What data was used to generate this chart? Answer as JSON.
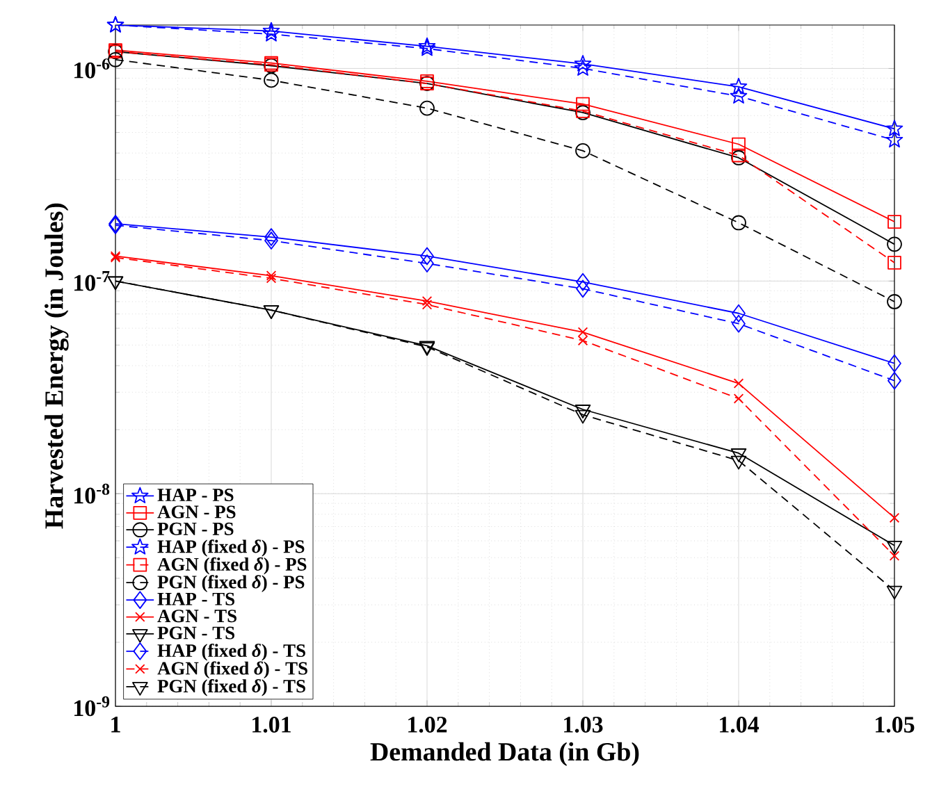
{
  "chart_data": {
    "type": "line",
    "xlabel": "Demanded Data (in Gb)",
    "ylabel": "Harvested Energy (in Joules)",
    "x": [
      1,
      1.01,
      1.02,
      1.03,
      1.04,
      1.05
    ],
    "log": "y",
    "grid": true,
    "legend": "bottom left",
    "xlim": [
      1,
      1.05
    ],
    "xticks": [
      1,
      1.01,
      1.02,
      1.03,
      1.04,
      1.05
    ],
    "ylim": [
      1e-09,
      1.6e-06
    ],
    "yticks": [
      {
        "value": 1e-09,
        "label": "10$^{-9}$"
      },
      {
        "value": 1e-08,
        "label": "10$^{-8}$"
      },
      {
        "value": 1e-07,
        "label": "10$^{-7}$"
      },
      {
        "value": 1e-06,
        "label": "10$^{-6}$"
      }
    ],
    "series": [
      {
        "name": "HAP - PS",
        "color": "#0000ff",
        "marker": "star",
        "line_style": "solid",
        "values": [
          1.6e-06,
          1.5e-06,
          1.27e-06,
          1.05e-06,
          8.2e-07,
          5.2e-07
        ]
      },
      {
        "name": "AGN - PS",
        "color": "#ff0000",
        "marker": "square",
        "line_style": "solid",
        "values": [
          1.22e-06,
          1.06e-06,
          8.7e-07,
          6.8e-07,
          4.4e-07,
          1.9e-07
        ]
      },
      {
        "name": "PGN - PS",
        "color": "#000000",
        "marker": "circle",
        "line_style": "solid",
        "values": [
          1.2e-06,
          1.03e-06,
          8.5e-07,
          6.2e-07,
          3.8e-07,
          1.49e-07
        ]
      },
      {
        "name": "HAP (fixed *δ*) - PS",
        "color": "#0000ff",
        "marker": "star",
        "line_style": "dashed",
        "values": [
          1.6e-06,
          1.45e-06,
          1.24e-06,
          1e-06,
          7.4e-07,
          4.6e-07
        ]
      },
      {
        "name": "AGN (fixed *δ*) - PS",
        "color": "#ff0000",
        "marker": "square",
        "line_style": "dashed",
        "values": [
          1.2e-06,
          1.04e-06,
          8.5e-07,
          6.3e-07,
          3.9e-07,
          1.22e-07
        ]
      },
      {
        "name": "PGN (fixed *δ*) - PS",
        "color": "#000000",
        "marker": "circle",
        "line_style": "dashed",
        "values": [
          1.1e-06,
          8.8e-07,
          6.5e-07,
          4.1e-07,
          1.88e-07,
          8e-08
        ]
      },
      {
        "name": "HAP - TS",
        "color": "#0000ff",
        "marker": "diamond",
        "line_style": "solid",
        "values": [
          1.86e-07,
          1.61e-07,
          1.31e-07,
          9.9e-08,
          7.05e-08,
          4.1e-08
        ]
      },
      {
        "name": "AGN - TS",
        "color": "#ff0000",
        "marker": "cross",
        "line_style": "solid",
        "values": [
          1.31e-07,
          1.06e-07,
          8.05e-08,
          5.75e-08,
          3.3e-08,
          7.7e-09
        ]
      },
      {
        "name": "PGN - TS",
        "color": "#000000",
        "marker": "triangle",
        "line_style": "solid",
        "values": [
          1e-07,
          7.3e-08,
          4.96e-08,
          2.49e-08,
          1.55e-08,
          5.7e-09
        ]
      },
      {
        "name": "HAP (fixed *δ*) - TS",
        "color": "#0000ff",
        "marker": "diamond",
        "line_style": "dashed",
        "values": [
          1.83e-07,
          1.55e-07,
          1.21e-07,
          9.2e-08,
          6.3e-08,
          3.4e-08
        ]
      },
      {
        "name": "AGN (fixed *δ*) - TS",
        "color": "#ff0000",
        "marker": "cross",
        "line_style": "dashed",
        "values": [
          1.29e-07,
          1.03e-07,
          7.75e-08,
          5.25e-08,
          2.8e-08,
          5.1e-09
        ]
      },
      {
        "name": "PGN (fixed *δ*) - TS",
        "color": "#000000",
        "marker": "triangle",
        "line_style": "dashed",
        "values": [
          1e-07,
          7.3e-08,
          4.9e-08,
          2.35e-08,
          1.43e-08,
          3.5e-09
        ]
      }
    ]
  }
}
